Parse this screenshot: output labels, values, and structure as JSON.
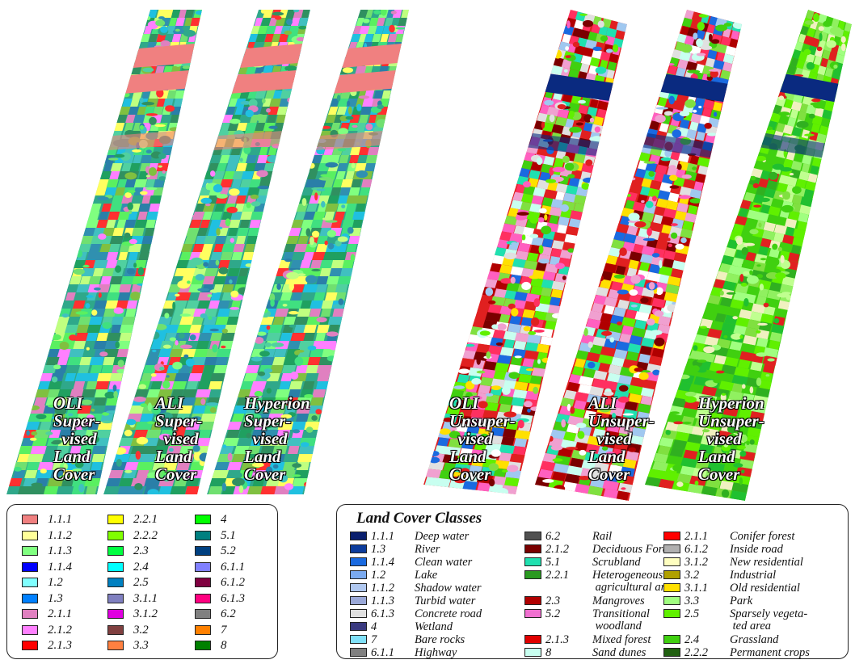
{
  "strips": [
    {
      "label": "OLI\nSuper-\n  vised\nLand\nCover",
      "palette": "supervised"
    },
    {
      "label": "ALI\nSuper-\n  vised\nLand\nCover",
      "palette": "supervised"
    },
    {
      "label": "Hyperion\nSuper-\n  vised\nLand\nCover",
      "palette": "supervised"
    },
    {
      "label": "OLI\nUnsuper-\n  vised\nLand\nCover",
      "palette": "unsupervised"
    },
    {
      "label": "ALI\nUnsuper-\n  vised\nLand\nCover",
      "palette": "unsupervised"
    },
    {
      "label": "Hyperion\nUnsuper-\n  vised\nLand\nCover",
      "palette": "unsupervised_green"
    }
  ],
  "supervised_legend": {
    "columns": [
      [
        {
          "code": "1.1.1",
          "color": "#f08080"
        },
        {
          "code": "1.1.2",
          "color": "#ffff99"
        },
        {
          "code": "1.1.3",
          "color": "#80ff80"
        },
        {
          "code": "1.1.4",
          "color": "#0000ff"
        },
        {
          "code": "1.2",
          "color": "#80ffff"
        },
        {
          "code": "1.3",
          "color": "#0080ff"
        },
        {
          "code": "2.1.1",
          "color": "#e080c0"
        },
        {
          "code": "2.1.2",
          "color": "#ff80ff"
        },
        {
          "code": "2.1.3",
          "color": "#ff0000"
        }
      ],
      [
        {
          "code": "2.2.1",
          "color": "#ffff00"
        },
        {
          "code": "2.2.2",
          "color": "#80ff00"
        },
        {
          "code": "2.3",
          "color": "#00ff40"
        },
        {
          "code": "2.4",
          "color": "#00ffff"
        },
        {
          "code": "2.5",
          "color": "#0080c0"
        },
        {
          "code": "3.1.1",
          "color": "#8080c0"
        },
        {
          "code": "3.1.2",
          "color": "#e000e0"
        },
        {
          "code": "3.2",
          "color": "#804040"
        },
        {
          "code": "3.3",
          "color": "#ff8040"
        }
      ],
      [
        {
          "code": "4",
          "color": "#00ff00"
        },
        {
          "code": "5.1",
          "color": "#008080"
        },
        {
          "code": "5.2",
          "color": "#004080"
        },
        {
          "code": "6.1.1",
          "color": "#8080ff"
        },
        {
          "code": "6.1.2",
          "color": "#800040"
        },
        {
          "code": "6.1.3",
          "color": "#ff0080"
        },
        {
          "code": "6.2",
          "color": "#808080"
        },
        {
          "code": "7",
          "color": "#ff8000"
        },
        {
          "code": "8",
          "color": "#008000"
        }
      ]
    ]
  },
  "land_cover_legend": {
    "title": "Land Cover Classes",
    "columns": [
      [
        {
          "code": "1.1.1",
          "name": "Deep water",
          "color": "#0a1f6e"
        },
        {
          "code": "1.3",
          "name": "River",
          "color": "#0c3c9c"
        },
        {
          "code": "1.1.4",
          "name": "Clean water",
          "color": "#1a6ae0"
        },
        {
          "code": "1.2",
          "name": "Lake",
          "color": "#7aaaf0"
        },
        {
          "code": "1.1.2",
          "name": "Shadow water",
          "color": "#b0c8f0"
        },
        {
          "code": "1.1.3",
          "name": "Turbid water",
          "color": "#9aa8d8"
        },
        {
          "code": "6.1.3",
          "name": "Concrete road",
          "color": "#e0e0e0"
        },
        {
          "code": "4",
          "name": "Wetland",
          "color": "#3a3a80"
        },
        {
          "code": "7",
          "name": "Bare rocks",
          "color": "#80e0f8"
        },
        {
          "code": "6.1.1",
          "name": "Highway",
          "color": "#808080"
        }
      ],
      [
        {
          "code": "6.2",
          "name": "Rail",
          "color": "#505050"
        },
        {
          "code": "2.1.2",
          "name": "Deciduous Forest",
          "color": "#7a0000"
        },
        {
          "code": "5.1",
          "name": "Scrubland",
          "color": "#20e0b0"
        },
        {
          "code": "2.2.1",
          "name": "Heterogeneous\n agricultural area",
          "color": "#2a9a20"
        },
        {
          "code": "2.3",
          "name": "Mangroves",
          "color": "#b00000"
        },
        {
          "code": "5.2",
          "name": "Transitional\n woodland",
          "color": "#f070d0"
        },
        {
          "code": "2.1.3",
          "name": "Mixed forest",
          "color": "#e00000"
        },
        {
          "code": "8",
          "name": "Sand dunes",
          "color": "#c8fff0"
        }
      ],
      [
        {
          "code": "2.1.1",
          "name": "Conifer forest",
          "color": "#ff0000"
        },
        {
          "code": "6.1.2",
          "name": "Inside road",
          "color": "#b0b0b0"
        },
        {
          "code": "3.1.2",
          "name": "New residential",
          "color": "#ffffc0"
        },
        {
          "code": "3.2",
          "name": "Industrial",
          "color": "#b0a000"
        },
        {
          "code": "3.1.1",
          "name": "Old residential",
          "color": "#ffe000"
        },
        {
          "code": "3.3",
          "name": "Park",
          "color": "#a0ff80"
        },
        {
          "code": "2.5",
          "name": "Sparsely vegeta-\n ted area",
          "color": "#60f000"
        },
        {
          "code": "2.4",
          "name": "Grassland",
          "color": "#40d010"
        },
        {
          "code": "2.2.2",
          "name": "Permanent crops",
          "color": "#206010"
        }
      ]
    ]
  }
}
